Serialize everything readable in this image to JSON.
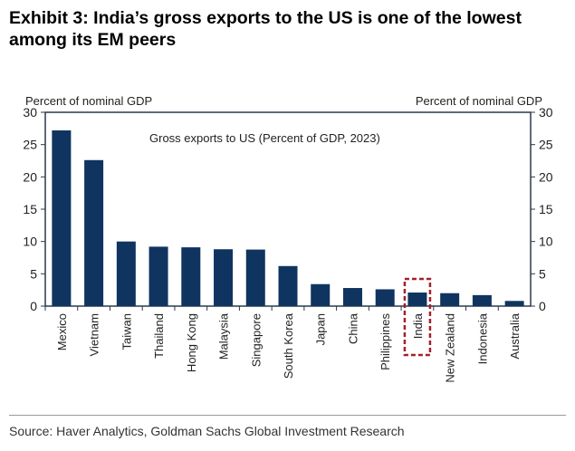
{
  "title": "Exhibit 3: India’s gross exports to the US is one of the lowest among its EM peers",
  "source": "Source: Haver Analytics, Goldman Sachs Global Investment Research",
  "chart_data": {
    "type": "bar",
    "title": "Gross exports to US (Percent of GDP, 2023)",
    "ylabel_left": "Percent of nominal GDP",
    "ylabel_right": "Percent of nominal GDP",
    "ylim": [
      0,
      30
    ],
    "yticks": [
      0,
      5,
      10,
      15,
      20,
      25,
      30
    ],
    "categories": [
      "Mexico",
      "Vietnam",
      "Taiwan",
      "Thailand",
      "Hong Kong",
      "Malaysia",
      "Singapore",
      "South Korea",
      "Japan",
      "China",
      "Philippines",
      "India",
      "New Zealand",
      "Indonesia",
      "Australia"
    ],
    "values": [
      27.2,
      22.6,
      10.0,
      9.2,
      9.1,
      8.8,
      8.75,
      6.2,
      3.4,
      2.8,
      2.6,
      2.1,
      2.0,
      1.7,
      0.8
    ],
    "highlight": "India",
    "bar_color": "#0f3460",
    "highlight_color": "#a3202a",
    "grid": false
  }
}
